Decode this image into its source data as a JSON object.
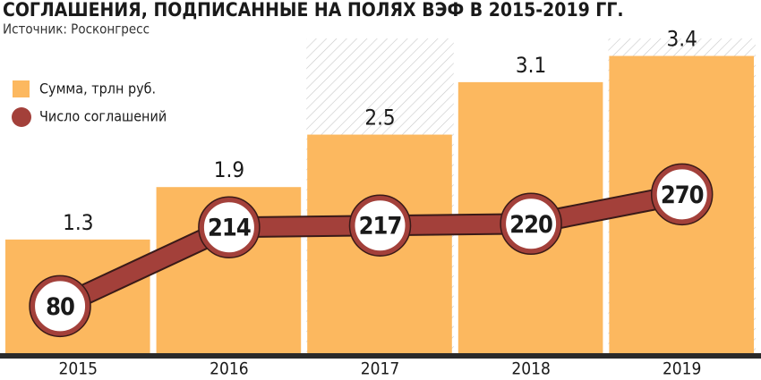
{
  "chart_data": {
    "type": "bar",
    "title": "СОГЛАШЕНИЯ, ПОДПИСАННЫЕ НА ПОЛЯХ ВЭФ В 2015-2019 ГГ.",
    "subtitle": "Источник: Росконгресс",
    "categories": [
      "2015",
      "2016",
      "2017",
      "2018",
      "2019"
    ],
    "series": [
      {
        "name": "Сумма, трлн руб.",
        "color": "#fcb85f",
        "values": [
          1.3,
          1.9,
          2.5,
          3.1,
          3.4
        ]
      },
      {
        "name": "Число соглашений",
        "color": "#a3403a",
        "values": [
          80,
          214,
          217,
          220,
          270
        ],
        "axis": "y2",
        "type": "line"
      }
    ],
    "ylim": [
      0,
      3.6
    ],
    "y2lim": [
      0,
      535
    ]
  }
}
